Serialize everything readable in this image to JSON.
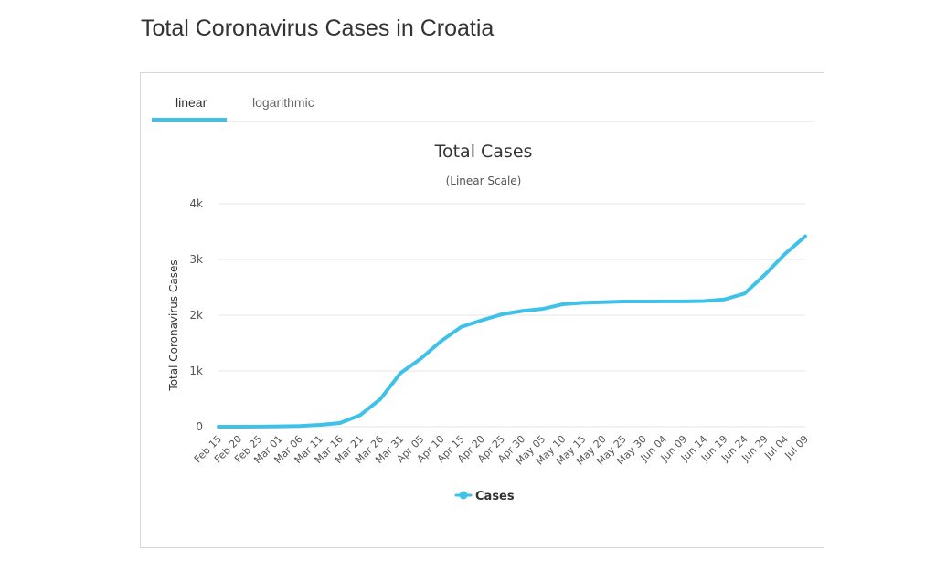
{
  "page": {
    "title": "Total Coronavirus Cases in Croatia"
  },
  "tabs": {
    "items": [
      {
        "label": "linear",
        "active": true
      },
      {
        "label": "logarithmic",
        "active": false
      }
    ]
  },
  "colors": {
    "series": "#3fc1e8",
    "grid": "#e6e6e6",
    "text": "#555555",
    "accent": "#3fc1e8"
  },
  "chart_data": {
    "type": "line",
    "title": "Total Cases",
    "subtitle": "(Linear Scale)",
    "xlabel": "",
    "ylabel": "Total Coronavirus Cases",
    "ylim": [
      0,
      4000
    ],
    "y_ticks": [
      {
        "value": 0,
        "label": "0"
      },
      {
        "value": 1000,
        "label": "1k"
      },
      {
        "value": 2000,
        "label": "2k"
      },
      {
        "value": 3000,
        "label": "3k"
      },
      {
        "value": 4000,
        "label": "4k"
      }
    ],
    "x_tick_labels": [
      "Feb 15",
      "Feb 20",
      "Feb 25",
      "Mar 01",
      "Mar 06",
      "Mar 11",
      "Mar 16",
      "Mar 21",
      "Mar 26",
      "Mar 31",
      "Apr 05",
      "Apr 10",
      "Apr 15",
      "Apr 20",
      "Apr 25",
      "Apr 30",
      "May 05",
      "May 10",
      "May 15",
      "May 20",
      "May 25",
      "May 30",
      "Jun 04",
      "Jun 09",
      "Jun 14",
      "Jun 19",
      "Jun 24",
      "Jun 29",
      "Jul 04",
      "Jul 09"
    ],
    "grid": true,
    "legend": {
      "position": "bottom-center"
    },
    "series": [
      {
        "name": "Cases",
        "x": [
          "Feb 15",
          "Feb 20",
          "Feb 25",
          "Mar 01",
          "Mar 06",
          "Mar 11",
          "Mar 16",
          "Mar 21",
          "Mar 26",
          "Mar 31",
          "Apr 05",
          "Apr 10",
          "Apr 15",
          "Apr 20",
          "Apr 25",
          "Apr 30",
          "May 05",
          "May 10",
          "May 15",
          "May 20",
          "May 25",
          "May 30",
          "Jun 04",
          "Jun 09",
          "Jun 14",
          "Jun 19",
          "Jun 24",
          "Jun 29",
          "Jul 04",
          "Jul 09"
        ],
        "values": [
          0,
          0,
          3,
          7,
          12,
          32,
          65,
          206,
          495,
          963,
          1222,
          1534,
          1791,
          1908,
          2016,
          2076,
          2112,
          2196,
          2224,
          2234,
          2245,
          2246,
          2247,
          2247,
          2254,
          2283,
          2388,
          2725,
          3100,
          3416
        ]
      }
    ]
  }
}
